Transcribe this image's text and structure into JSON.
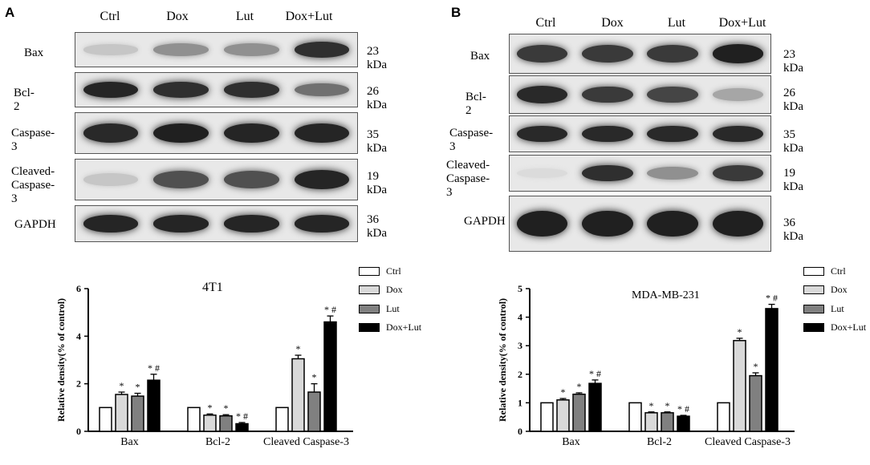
{
  "panels": [
    {
      "letter": "A",
      "lanes": [
        "Ctrl",
        "Dox",
        "Lut",
        "Dox+Lut"
      ],
      "rows": [
        {
          "label": "Bax",
          "kda": "23 kDa",
          "bands": [
            0.15,
            0.4,
            0.4,
            0.85
          ]
        },
        {
          "label": "Bcl-2",
          "kda": "26 kDa",
          "bands": [
            0.9,
            0.85,
            0.85,
            0.55
          ]
        },
        {
          "label": "Caspase-3",
          "kda": "35 kDa",
          "bands": [
            0.88,
            0.92,
            0.9,
            0.9
          ]
        },
        {
          "label": "Cleaved-\nCaspase-3",
          "kda": "19 kDa",
          "bands": [
            0.15,
            0.7,
            0.7,
            0.9
          ]
        },
        {
          "label": "GAPDH",
          "kda": "36 kDa",
          "bands": [
            0.9,
            0.9,
            0.9,
            0.9
          ]
        }
      ],
      "chart": {
        "title": "4T1",
        "ylabel": "Relative density(% of control)",
        "ylim": [
          0,
          6
        ],
        "yticks": [
          "0",
          "2",
          "4",
          "6"
        ],
        "categories": [
          "Bax",
          "Bcl-2",
          "Cleaved Caspase-3"
        ],
        "legend": [
          "Ctrl",
          "Dox",
          "Lut",
          "Dox+Lut"
        ],
        "series": [
          {
            "name": "Ctrl",
            "values": [
              1.0,
              1.0,
              1.0
            ],
            "errors": [
              0,
              0,
              0
            ],
            "marks": [
              "",
              "",
              ""
            ]
          },
          {
            "name": "Dox",
            "values": [
              1.55,
              0.68,
              3.05
            ],
            "errors": [
              0.1,
              0.05,
              0.15
            ],
            "marks": [
              "*",
              "*",
              "*"
            ]
          },
          {
            "name": "Lut",
            "values": [
              1.48,
              0.65,
              1.65
            ],
            "errors": [
              0.12,
              0.05,
              0.35
            ],
            "marks": [
              "*",
              "*",
              "*"
            ]
          },
          {
            "name": "Dox+Lut",
            "values": [
              2.15,
              0.32,
              4.6
            ],
            "errors": [
              0.25,
              0.05,
              0.25
            ],
            "marks": [
              "* #",
              "* #",
              "* #"
            ]
          }
        ]
      }
    },
    {
      "letter": "B",
      "lanes": [
        "Ctrl",
        "Dox",
        "Lut",
        "Dox+Lut"
      ],
      "rows": [
        {
          "label": "Bax",
          "kda": "23 kDa",
          "bands": [
            0.8,
            0.8,
            0.8,
            0.92
          ]
        },
        {
          "label": "Bcl-2",
          "kda": "26 kDa",
          "bands": [
            0.88,
            0.8,
            0.75,
            0.3
          ]
        },
        {
          "label": "Caspase-3",
          "kda": "35 kDa",
          "bands": [
            0.88,
            0.88,
            0.88,
            0.88
          ]
        },
        {
          "label": "Cleaved-\nCaspase-3",
          "kda": "19 kDa",
          "bands": [
            0.05,
            0.85,
            0.4,
            0.8
          ]
        },
        {
          "label": "GAPDH",
          "kda": "36 kDa",
          "bands": [
            0.92,
            0.92,
            0.92,
            0.92
          ]
        }
      ],
      "chart": {
        "title": "MDA-MB-231",
        "ylabel": "Relative density(% of control)",
        "ylim": [
          0,
          5
        ],
        "yticks": [
          "0",
          "1",
          "2",
          "3",
          "4",
          "5"
        ],
        "categories": [
          "Bax",
          "Bcl-2",
          "Cleaved Caspase-3"
        ],
        "legend": [
          "Ctrl",
          "Dox",
          "Lut",
          "Dox+Lut"
        ],
        "series": [
          {
            "name": "Ctrl",
            "values": [
              1.0,
              1.0,
              1.0
            ],
            "errors": [
              0,
              0,
              0
            ],
            "marks": [
              "",
              "",
              ""
            ]
          },
          {
            "name": "Dox",
            "values": [
              1.1,
              0.65,
              3.18
            ],
            "errors": [
              0.05,
              0.03,
              0.08
            ],
            "marks": [
              "*",
              "*",
              "*"
            ]
          },
          {
            "name": "Lut",
            "values": [
              1.3,
              0.65,
              1.95
            ],
            "errors": [
              0.05,
              0.03,
              0.1
            ],
            "marks": [
              "*",
              "*",
              "*"
            ]
          },
          {
            "name": "Dox+Lut",
            "values": [
              1.68,
              0.53,
              4.3
            ],
            "errors": [
              0.12,
              0.03,
              0.15
            ],
            "marks": [
              "* #",
              "* #",
              "* #"
            ]
          }
        ]
      }
    }
  ],
  "chart_data": [
    {
      "type": "bar",
      "title": "4T1",
      "ylabel": "Relative density(% of control)",
      "ylim": [
        0,
        6
      ],
      "categories": [
        "Bax",
        "Bcl-2",
        "Cleaved Caspase-3"
      ],
      "series": [
        {
          "name": "Ctrl",
          "values": [
            1.0,
            1.0,
            1.0
          ]
        },
        {
          "name": "Dox",
          "values": [
            1.55,
            0.68,
            3.05
          ]
        },
        {
          "name": "Lut",
          "values": [
            1.48,
            0.65,
            1.65
          ]
        },
        {
          "name": "Dox+Lut",
          "values": [
            2.15,
            0.32,
            4.6
          ]
        }
      ],
      "legend": "right"
    },
    {
      "type": "bar",
      "title": "MDA-MB-231",
      "ylabel": "Relative density(% of control)",
      "ylim": [
        0,
        5
      ],
      "categories": [
        "Bax",
        "Bcl-2",
        "Cleaved Caspase-3"
      ],
      "series": [
        {
          "name": "Ctrl",
          "values": [
            1.0,
            1.0,
            1.0
          ]
        },
        {
          "name": "Dox",
          "values": [
            1.1,
            0.65,
            3.18
          ]
        },
        {
          "name": "Lut",
          "values": [
            1.3,
            0.65,
            1.95
          ]
        },
        {
          "name": "Dox+Lut",
          "values": [
            1.68,
            0.53,
            4.3
          ]
        }
      ],
      "legend": "right"
    }
  ],
  "colors": {
    "series_fills": [
      "#ffffff",
      "#d9d9d9",
      "#808080",
      "#000000"
    ],
    "blot_background": "#e8e8e8",
    "band": "#1a1a1a"
  }
}
